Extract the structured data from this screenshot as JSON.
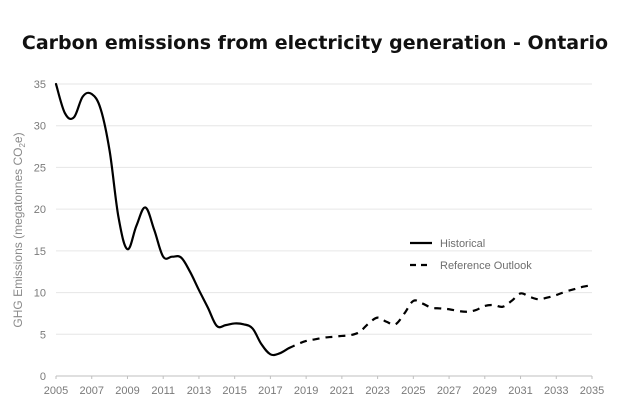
{
  "chart_data": {
    "type": "line",
    "title": "Carbon emissions from electricity generation - Ontario",
    "ylabel": {
      "main": "GHG Emissions (megatonnes CO",
      "subscript": "2",
      "suffix": "e)"
    },
    "xlabel": "",
    "xlim": [
      2005,
      2035
    ],
    "ylim": [
      0,
      35
    ],
    "x_ticks": [
      "2005",
      "2007",
      "2009",
      "2011",
      "2013",
      "2015",
      "2017",
      "2019",
      "2021",
      "2023",
      "2025",
      "2027",
      "2029",
      "2031",
      "2033",
      "2035"
    ],
    "y_ticks": [
      "0",
      "5",
      "10",
      "15",
      "20",
      "25",
      "30",
      "35"
    ],
    "grid": "horizontal",
    "legend_position": "right",
    "series": [
      {
        "name": "Historical",
        "style": "solid",
        "points": [
          [
            2005,
            35.0
          ],
          [
            2005.5,
            31.5
          ],
          [
            2006,
            31.0
          ],
          [
            2006.5,
            33.5
          ],
          [
            2007,
            33.8
          ],
          [
            2007.5,
            32.0
          ],
          [
            2008,
            27.0
          ],
          [
            2008.5,
            19.0
          ],
          [
            2009,
            15.2
          ],
          [
            2009.5,
            18.0
          ],
          [
            2010,
            20.2
          ],
          [
            2010.5,
            17.5
          ],
          [
            2011,
            14.3
          ],
          [
            2011.5,
            14.3
          ],
          [
            2012,
            14.2
          ],
          [
            2012.5,
            12.5
          ],
          [
            2013,
            10.3
          ],
          [
            2013.5,
            8.2
          ],
          [
            2014,
            6.0
          ],
          [
            2014.5,
            6.1
          ],
          [
            2015,
            6.3
          ],
          [
            2015.5,
            6.2
          ],
          [
            2016,
            5.7
          ],
          [
            2016.5,
            3.8
          ],
          [
            2017,
            2.6
          ],
          [
            2017.5,
            2.7
          ],
          [
            2018,
            3.3
          ]
        ],
        "color": "#000000"
      },
      {
        "name": "Reference Outlook",
        "style": "dashed",
        "points": [
          [
            2018,
            3.3
          ],
          [
            2018.5,
            3.8
          ],
          [
            2019,
            4.2
          ],
          [
            2019.5,
            4.4
          ],
          [
            2020,
            4.6
          ],
          [
            2020.5,
            4.7
          ],
          [
            2021,
            4.8
          ],
          [
            2021.5,
            4.9
          ],
          [
            2022,
            5.3
          ],
          [
            2022.5,
            6.3
          ],
          [
            2023,
            7.0
          ],
          [
            2023.5,
            6.5
          ],
          [
            2024,
            6.2
          ],
          [
            2024.5,
            7.5
          ],
          [
            2025,
            9.0
          ],
          [
            2025.5,
            8.7
          ],
          [
            2026,
            8.2
          ],
          [
            2026.5,
            8.1
          ],
          [
            2027,
            8.0
          ],
          [
            2027.5,
            7.8
          ],
          [
            2028,
            7.7
          ],
          [
            2028.5,
            7.9
          ],
          [
            2029,
            8.4
          ],
          [
            2029.5,
            8.5
          ],
          [
            2030,
            8.3
          ],
          [
            2030.5,
            9.0
          ],
          [
            2031,
            9.9
          ],
          [
            2031.5,
            9.5
          ],
          [
            2032,
            9.2
          ],
          [
            2032.5,
            9.4
          ],
          [
            2033,
            9.7
          ],
          [
            2033.5,
            10.1
          ],
          [
            2034,
            10.4
          ],
          [
            2034.5,
            10.7
          ],
          [
            2035,
            10.9
          ]
        ],
        "color": "#000000"
      }
    ]
  }
}
